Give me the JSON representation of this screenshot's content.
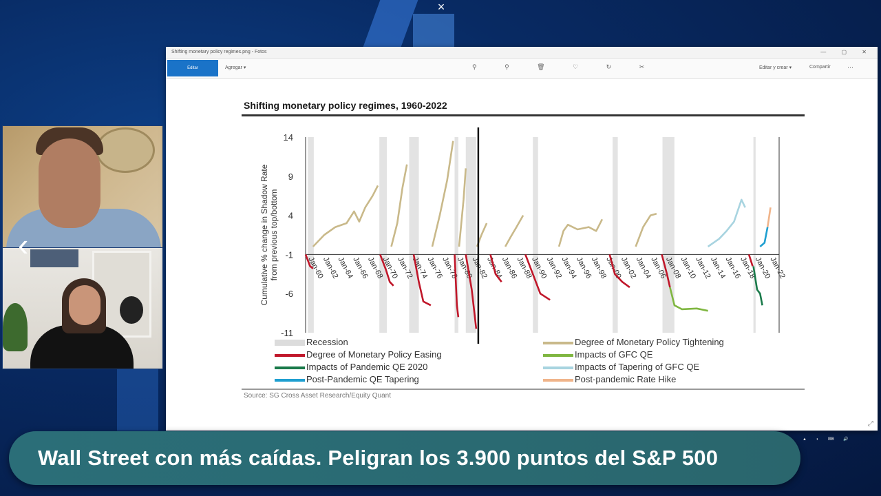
{
  "ticker": {
    "headline": "Wall Street con más caídas. Peligran los 3.900 puntos del S&P 500"
  },
  "overlay": {
    "close_glyph": "×",
    "nav_left_glyph": "‹"
  },
  "viewer": {
    "title": "Shifting monetary policy regimes.png - Fotos",
    "blue_button": "Editar",
    "menu_label": "Agregar ▾",
    "right_label_1": "Editar y crear ▾",
    "right_label_2": "Compartir",
    "more_glyph": "⋯",
    "window_controls": "— ▢ ✕",
    "tool_icons": "⚲ ⚲ 🗑 ♡ ↻ ✂",
    "resize_glyph": "⤢"
  },
  "chart_data": {
    "type": "line",
    "title": "Shifting monetary policy regimes, 1960-2022",
    "ylabel": "Cumulative % change in Shadow Rate from previous top/bottom",
    "ylim": [
      -11,
      14
    ],
    "yticks": [
      14,
      9,
      4,
      -1,
      -6,
      -11
    ],
    "xticks": [
      "Jan-60",
      "Jan-62",
      "Jan-64",
      "Jan-66",
      "Jan-68",
      "Jan-70",
      "Jan-72",
      "Jan-74",
      "Jan-76",
      "Jan-78",
      "Jan-80",
      "Jan-82",
      "Jan-84",
      "Jan-86",
      "Jan-88",
      "Jan-90",
      "Jan-92",
      "Jan-94",
      "Jan-96",
      "Jan-98",
      "Jan-00",
      "Jan-02",
      "Jan-04",
      "Jan-06",
      "Jan-08",
      "Jan-10",
      "Jan-12",
      "Jan-14",
      "Jan-16",
      "Jan-18",
      "Jan-20",
      "Jan-22"
    ],
    "recessions": [
      [
        1960.3,
        1961.1
      ],
      [
        1969.9,
        1970.9
      ],
      [
        1973.9,
        1975.2
      ],
      [
        1980.0,
        1980.5
      ],
      [
        1981.5,
        1982.9
      ],
      [
        1990.5,
        1991.2
      ],
      [
        2001.2,
        2001.9
      ],
      [
        2007.9,
        2009.5
      ],
      [
        2020.1,
        2020.4
      ]
    ],
    "legend": [
      {
        "label": "Recession",
        "color": "#dcdcdc"
      },
      {
        "label": "Degree of Monetary Policy Tightening",
        "color": "#c9b98a"
      },
      {
        "label": "Degree of Monetary Policy Easing",
        "color": "#c0172a"
      },
      {
        "label": "Impacts of GFC QE",
        "color": "#7fb640"
      },
      {
        "label": "Impacts of Pandemic QE 2020",
        "color": "#1a7a4a"
      },
      {
        "label": "Impacts of Tapering of GFC QE",
        "color": "#a8d4e0"
      },
      {
        "label": "Post-Pandemic QE Tapering",
        "color": "#1f9fd0"
      },
      {
        "label": "Post-pandemic Rate Hike",
        "color": "#f0b48a"
      }
    ],
    "series": [
      {
        "regime": "tightening",
        "x": [
          1961.0,
          1962.5,
          1964.0,
          1965.5,
          1966.5,
          1967.2,
          1968.0,
          1969.0,
          1969.7
        ],
        "y": [
          0.0,
          1.5,
          2.5,
          3.0,
          4.5,
          3.2,
          5.0,
          6.5,
          7.8
        ]
      },
      {
        "regime": "tightening",
        "x": [
          1971.5,
          1972.3,
          1973.0,
          1973.6
        ],
        "y": [
          0.0,
          3.0,
          7.5,
          10.5
        ]
      },
      {
        "regime": "tightening",
        "x": [
          1977.0,
          1978.0,
          1979.0,
          1979.8
        ],
        "y": [
          0.0,
          4.0,
          8.5,
          13.5
        ]
      },
      {
        "regime": "tightening",
        "x": [
          1980.6,
          1981.2,
          1981.5
        ],
        "y": [
          0.0,
          6.0,
          10.0
        ]
      },
      {
        "regime": "tightening",
        "x": [
          1983.0,
          1983.6,
          1984.3
        ],
        "y": [
          0.0,
          1.5,
          3.0
        ]
      },
      {
        "regime": "tightening",
        "x": [
          1986.8,
          1987.5,
          1988.3,
          1989.2
        ],
        "y": [
          0.0,
          1.2,
          2.5,
          4.0
        ]
      },
      {
        "regime": "tightening",
        "x": [
          1994.0,
          1994.6,
          1995.2,
          1996.5,
          1998.0,
          1999.0,
          1999.8
        ],
        "y": [
          0.0,
          2.0,
          2.8,
          2.2,
          2.5,
          2.0,
          3.5
        ]
      },
      {
        "regime": "tightening",
        "x": [
          2004.3,
          2005.3,
          2006.3,
          2007.1
        ],
        "y": [
          0.0,
          2.5,
          4.0,
          4.2
        ]
      },
      {
        "regime": "tapering_gfc",
        "x": [
          2014.0,
          2015.5,
          2016.5,
          2017.5,
          2018.5,
          2019.0
        ],
        "y": [
          0.0,
          1.0,
          2.0,
          3.2,
          6.0,
          5.0
        ]
      },
      {
        "regime": "post_pandemic_tapering",
        "x": [
          2021.0,
          2021.6,
          2022.0
        ],
        "y": [
          0.0,
          0.5,
          2.5
        ]
      },
      {
        "regime": "post_pandemic_hike",
        "x": [
          2022.0,
          2022.4
        ],
        "y": [
          2.5,
          5.0
        ]
      },
      {
        "regime": "easing",
        "x": [
          1960.0,
          1960.6,
          1961.0
        ],
        "y": [
          -1.0,
          -2.5,
          -2.8
        ]
      },
      {
        "regime": "easing",
        "x": [
          1970.0,
          1970.8,
          1971.3,
          1971.8
        ],
        "y": [
          -1.0,
          -3.0,
          -4.5,
          -5.0
        ]
      },
      {
        "regime": "easing",
        "x": [
          1974.5,
          1975.2,
          1975.8,
          1976.8
        ],
        "y": [
          -1.0,
          -4.5,
          -7.0,
          -7.5
        ]
      },
      {
        "regime": "easing",
        "x": [
          1980.0,
          1980.3,
          1980.5
        ],
        "y": [
          -1.0,
          -7.5,
          -9.0
        ]
      },
      {
        "regime": "easing",
        "x": [
          1981.5,
          1982.3,
          1982.9
        ],
        "y": [
          -1.0,
          -5.5,
          -10.5
        ]
      },
      {
        "regime": "easing",
        "x": [
          1984.8,
          1985.5,
          1986.3
        ],
        "y": [
          -1.0,
          -3.5,
          -4.5
        ]
      },
      {
        "regime": "easing",
        "x": [
          1989.5,
          1990.5,
          1991.5,
          1992.8
        ],
        "y": [
          -1.0,
          -3.5,
          -6.0,
          -6.8
        ]
      },
      {
        "regime": "easing",
        "x": [
          2000.8,
          2001.5,
          2002.5,
          2003.5
        ],
        "y": [
          -1.0,
          -3.5,
          -4.5,
          -5.2
        ]
      },
      {
        "regime": "easing",
        "x": [
          2007.8,
          2008.5,
          2008.9
        ],
        "y": [
          -1.0,
          -3.5,
          -5.2
        ]
      },
      {
        "regime": "gfc_qe",
        "x": [
          2008.9,
          2009.5,
          2010.5,
          2012.5,
          2014.0
        ],
        "y": [
          -5.2,
          -7.5,
          -8.0,
          -7.9,
          -8.2
        ]
      },
      {
        "regime": "easing",
        "x": [
          2019.5,
          2020.0
        ],
        "y": [
          -1.0,
          -2.5
        ]
      },
      {
        "regime": "pandemic_qe",
        "x": [
          2020.1,
          2020.6,
          2021.0,
          2021.3
        ],
        "y": [
          -2.5,
          -5.5,
          -6.0,
          -7.5
        ]
      }
    ],
    "source": "Source: SG Cross Asset Research/Equity Quant"
  }
}
